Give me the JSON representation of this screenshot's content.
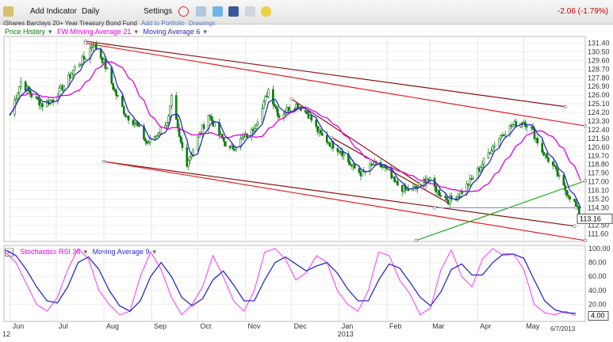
{
  "toolbar": {
    "add_indicator": "Add Indicator",
    "period": "Daily",
    "settings": "Settings",
    "change": "-2.06 (-1.79%)"
  },
  "info": {
    "name": "iShares Barclays 20+ Year Treasury Bond Fund",
    "add_portfolio": "Add to Portfolio",
    "drawings": "Drawings"
  },
  "legend_main": [
    "Price History",
    "FW Moving Average 21",
    "Moving Average 6"
  ],
  "legend_osc": [
    "Stochastics RSI 34",
    "Moving Average 9"
  ],
  "colors": {
    "price": "#0a7a0a",
    "ma21": "#e000e0",
    "ma6": "#2a2acc",
    "channel_red": "#e02020",
    "channel_dark": "#8a1010",
    "support_green": "#20b020",
    "stoch": "#ff33ff",
    "stoch_ma": "#2a2acc"
  },
  "chart_data": [
    {
      "type": "candlestick",
      "y_ticks": [
        "131.40",
        "130.50",
        "129.60",
        "128.70",
        "127.80",
        "126.90",
        "126.00",
        "125.10",
        "124.20",
        "123.30",
        "122.40",
        "121.50",
        "120.60",
        "119.70",
        "118.80",
        "117.90",
        "117.00",
        "116.10",
        "115.20",
        "114.30",
        "113.40",
        "112.50",
        "111.60"
      ],
      "ylim": [
        110.8,
        132.1
      ],
      "last_price_label": "113.16",
      "last_price": 113.16,
      "x_months": [
        "Jun",
        "Jul",
        "Aug",
        "Sep",
        "Oct",
        "Nov",
        "Dec",
        "Jan",
        "Feb",
        "Mar",
        "Apr",
        "May"
      ],
      "x_year_labels": [
        "12",
        "2013"
      ],
      "date_label": "6/7/2013",
      "x_range": [
        "2012-05-28",
        "2013-06-10"
      ],
      "close_points": [
        [
          "2012-06-01",
          124.0
        ],
        [
          "2012-06-08",
          127.4
        ],
        [
          "2012-06-15",
          126.0
        ],
        [
          "2012-06-22",
          125.0
        ],
        [
          "2012-06-29",
          125.6
        ],
        [
          "2012-07-06",
          127.0
        ],
        [
          "2012-07-13",
          128.8
        ],
        [
          "2012-07-20",
          130.0
        ],
        [
          "2012-07-25",
          131.4
        ],
        [
          "2012-08-01",
          129.4
        ],
        [
          "2012-08-08",
          126.4
        ],
        [
          "2012-08-15",
          124.0
        ],
        [
          "2012-08-22",
          123.0
        ],
        [
          "2012-08-29",
          121.0
        ],
        [
          "2012-09-05",
          122.0
        ],
        [
          "2012-09-12",
          123.6
        ],
        [
          "2012-09-14",
          125.6
        ],
        [
          "2012-09-19",
          121.5
        ],
        [
          "2012-09-24",
          119.0
        ],
        [
          "2012-10-01",
          121.5
        ],
        [
          "2012-10-08",
          124.0
        ],
        [
          "2012-10-15",
          121.9
        ],
        [
          "2012-10-22",
          120.3
        ],
        [
          "2012-10-29",
          121.3
        ],
        [
          "2012-11-05",
          122.2
        ],
        [
          "2012-11-12",
          124.6
        ],
        [
          "2012-11-16",
          126.6
        ],
        [
          "2012-11-23",
          123.8
        ],
        [
          "2012-11-30",
          124.8
        ],
        [
          "2012-12-05",
          125.0
        ],
        [
          "2012-12-12",
          124.0
        ],
        [
          "2012-12-19",
          122.0
        ],
        [
          "2012-12-26",
          121.0
        ],
        [
          "2013-01-02",
          120.3
        ],
        [
          "2013-01-09",
          118.6
        ],
        [
          "2013-01-16",
          117.8
        ],
        [
          "2013-01-23",
          118.8
        ],
        [
          "2013-01-30",
          118.5
        ],
        [
          "2013-02-06",
          116.9
        ],
        [
          "2013-02-13",
          116.1
        ],
        [
          "2013-02-20",
          116.3
        ],
        [
          "2013-02-27",
          117.4
        ],
        [
          "2013-03-06",
          116.0
        ],
        [
          "2013-03-13",
          115.1
        ],
        [
          "2013-03-20",
          115.6
        ],
        [
          "2013-03-27",
          117.0
        ],
        [
          "2013-04-03",
          118.6
        ],
        [
          "2013-04-10",
          120.5
        ],
        [
          "2013-04-17",
          122.0
        ],
        [
          "2013-04-24",
          122.9
        ],
        [
          "2013-05-01",
          123.3
        ],
        [
          "2013-05-06",
          122.5
        ],
        [
          "2013-05-13",
          120.2
        ],
        [
          "2013-05-20",
          118.6
        ],
        [
          "2013-05-27",
          116.4
        ],
        [
          "2013-06-03",
          114.8
        ],
        [
          "2013-06-07",
          113.16
        ]
      ]
    },
    {
      "type": "line",
      "y_ticks": [
        "100.00",
        "80.00",
        "60.00",
        "40.00",
        "20.00"
      ],
      "ylim": [
        0,
        100
      ],
      "last_value_label": "4.00",
      "series": [
        {
          "name": "Stochastics RSI 34",
          "values": [
            95,
            80,
            50,
            20,
            10,
            30,
            70,
            100,
            85,
            40,
            20,
            5,
            10,
            60,
            95,
            70,
            30,
            5,
            20,
            45,
            90,
            60,
            25,
            10,
            40,
            95,
            100,
            85,
            55,
            65,
            90,
            80,
            40,
            20,
            10,
            40,
            95,
            90,
            55,
            35,
            5,
            15,
            70,
            98,
            60,
            45,
            85,
            100,
            90,
            92,
            70,
            20,
            8,
            5,
            10,
            4
          ]
        },
        {
          "name": "Moving Average 9",
          "values": [
            98,
            90,
            70,
            45,
            25,
            22,
            45,
            80,
            88,
            70,
            40,
            18,
            10,
            25,
            60,
            80,
            60,
            30,
            18,
            28,
            55,
            68,
            48,
            25,
            25,
            55,
            80,
            88,
            78,
            68,
            75,
            80,
            65,
            42,
            25,
            25,
            55,
            78,
            72,
            52,
            30,
            18,
            38,
            70,
            78,
            62,
            62,
            80,
            92,
            92,
            86,
            55,
            25,
            12,
            8,
            7
          ]
        }
      ]
    }
  ]
}
